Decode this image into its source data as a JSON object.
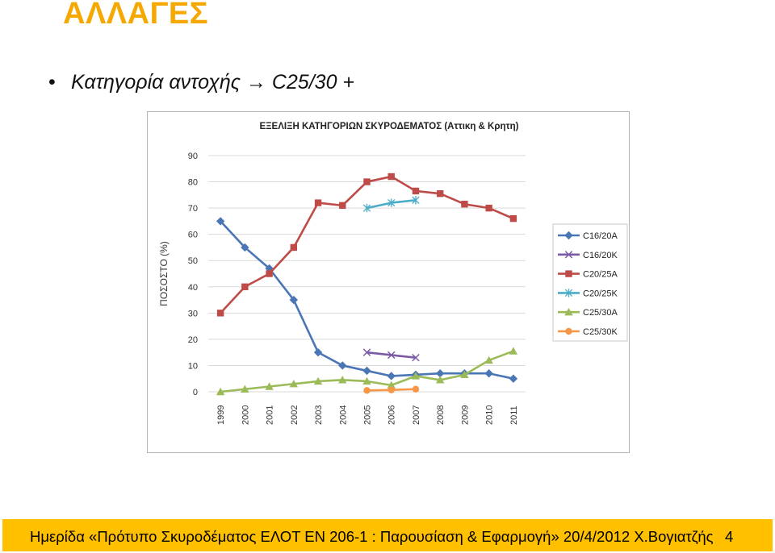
{
  "slide": {
    "title": "ΑΛΛΑΓΕΣ",
    "bullet": "Κατηγορία αντοχής → C25/30 +"
  },
  "footer": {
    "text": "Ημερίδα «Πρότυπο Σκυροδέματος ΕΛΟΤ ΕΝ 206-1 : Παρουσίαση & Εφαρμογή» 20/4/2012 Χ.Βογιατζής",
    "page_number": "4",
    "bar_color": "#ffc000"
  },
  "chart_data": {
    "type": "line",
    "title": "ΕΞΕΛΙΞΗ ΚΑΤΗΓΟΡΙΩΝ ΣΚΥΡΟΔΕΜΑΤΟΣ (Αττικη & Κρητη)",
    "xlabel": "",
    "ylabel": "ΠΟΣΟΣΤΟ (%)",
    "ylim": [
      0,
      90
    ],
    "yticks": [
      0,
      10,
      20,
      30,
      40,
      50,
      60,
      70,
      80,
      90
    ],
    "categories": [
      "1999",
      "2000",
      "2001",
      "2002",
      "2003",
      "2004",
      "2005",
      "2006",
      "2007",
      "2008",
      "2009",
      "2010",
      "2011"
    ],
    "grid": true,
    "legend_position": "right",
    "series": [
      {
        "name": "C16/20A",
        "color": "#4a76b5",
        "marker": "diamond",
        "values": [
          65,
          55,
          47,
          35,
          15,
          10,
          8,
          6,
          6.5,
          7,
          7,
          7,
          5
        ]
      },
      {
        "name": "C16/20K",
        "color": "#7b5aa6",
        "marker": "x",
        "values": [
          null,
          null,
          null,
          null,
          null,
          null,
          15,
          14,
          13,
          null,
          null,
          null,
          null
        ]
      },
      {
        "name": "C20/25A",
        "color": "#be4b48",
        "marker": "square",
        "values": [
          30,
          40,
          45,
          55,
          72,
          71,
          80,
          82,
          76.5,
          75.5,
          71.5,
          70,
          66
        ]
      },
      {
        "name": "C20/25K",
        "color": "#4aacc6",
        "marker": "asterisk",
        "values": [
          null,
          null,
          null,
          null,
          null,
          null,
          70,
          72,
          73,
          null,
          null,
          null,
          null
        ]
      },
      {
        "name": "C25/30A",
        "color": "#9bbb59",
        "marker": "triangle",
        "values": [
          0,
          1,
          2,
          3,
          4,
          4.5,
          4,
          2.5,
          6,
          4.5,
          6.5,
          12,
          15.5
        ]
      },
      {
        "name": "C25/30K",
        "color": "#f79646",
        "marker": "circle",
        "values": [
          null,
          null,
          null,
          null,
          null,
          null,
          0.5,
          0.7,
          1,
          null,
          null,
          null,
          null
        ]
      }
    ]
  }
}
